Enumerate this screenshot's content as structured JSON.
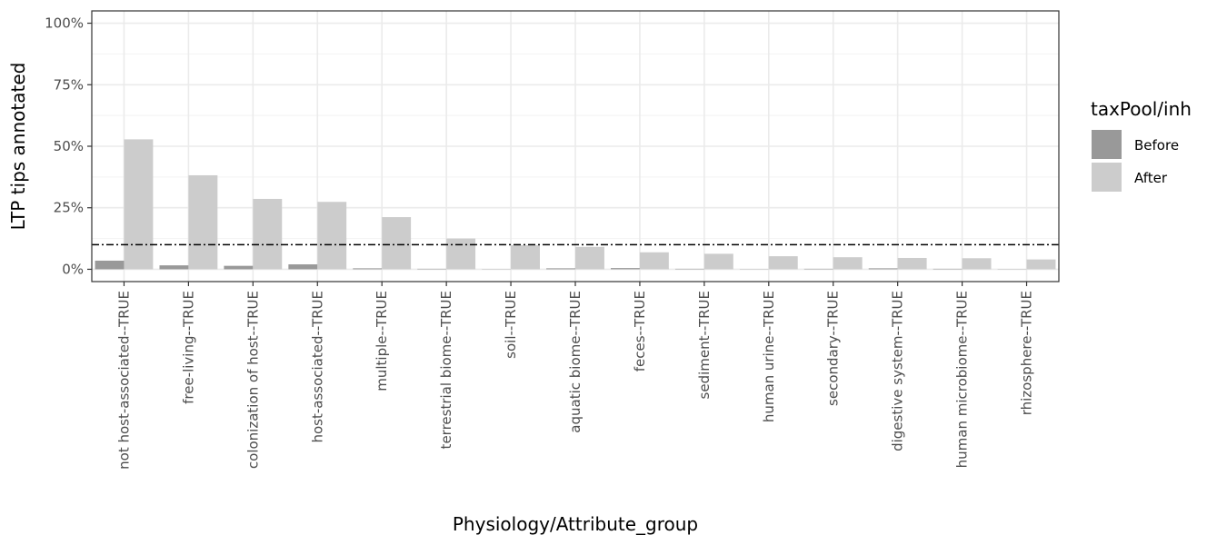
{
  "chart_data": {
    "type": "bar",
    "xlabel": "Physiology/Attribute_group",
    "ylabel": "LTP tips annotated",
    "categories": [
      "not host-associated--TRUE",
      "free-living--TRUE",
      "colonization of host--TRUE",
      "host-associated--TRUE",
      "multiple--TRUE",
      "terrestrial biome--TRUE",
      "soil--TRUE",
      "aquatic biome--TRUE",
      "feces--TRUE",
      "sediment--TRUE",
      "human urine--TRUE",
      "secondary--TRUE",
      "digestive system--TRUE",
      "human microbiome--TRUE",
      "rhizosphere--TRUE"
    ],
    "series": [
      {
        "name": "Before",
        "color": "#999999",
        "values": [
          3.5,
          1.6,
          1.4,
          2.0,
          0.4,
          0.2,
          0.1,
          0.4,
          0.5,
          0.2,
          0.1,
          0.2,
          0.4,
          0.2,
          0.1
        ]
      },
      {
        "name": "After",
        "color": "#cccccc",
        "values": [
          52.8,
          38.2,
          28.6,
          27.4,
          21.2,
          12.5,
          9.8,
          9.1,
          6.9,
          6.3,
          5.3,
          4.9,
          4.6,
          4.5,
          4.0
        ]
      }
    ],
    "ylim": [
      -5,
      105
    ],
    "yticks": [
      0,
      25,
      50,
      75,
      100
    ],
    "ytick_labels": [
      "0%",
      "25%",
      "50%",
      "75%",
      "100%"
    ],
    "reference_line": {
      "value": 10,
      "style": "dotdash",
      "color": "#000000"
    },
    "legend": {
      "title": "taxPool/inh",
      "position": "right"
    },
    "grid": true
  }
}
